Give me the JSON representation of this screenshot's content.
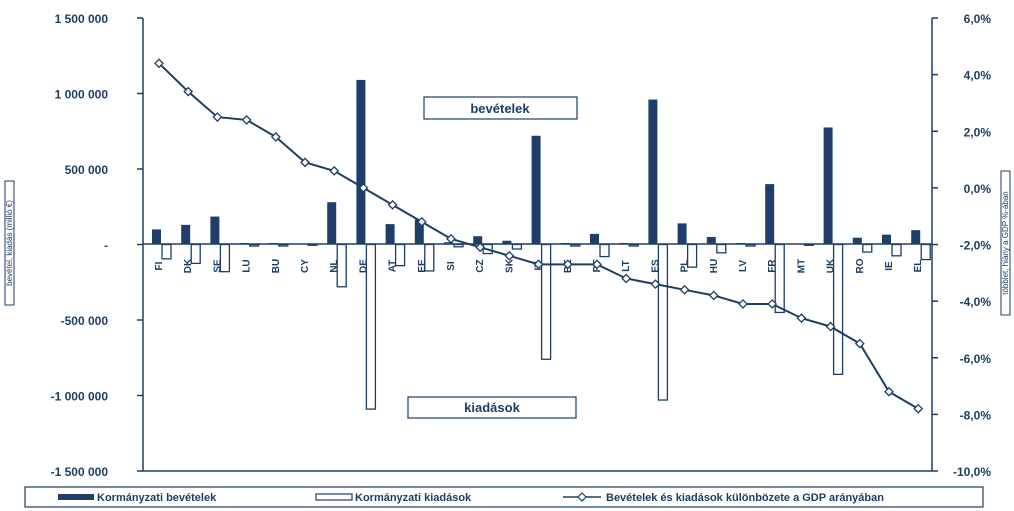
{
  "chart_data": {
    "type": "bar",
    "categories": [
      "FI",
      "DK",
      "SE",
      "LU",
      "BU",
      "CY",
      "NL",
      "DE",
      "AT",
      "EE",
      "SI",
      "CZ",
      "SK",
      "IT",
      "BE",
      "PT",
      "LT",
      "ES",
      "PL",
      "HU",
      "LV",
      "FR",
      "MT",
      "UK",
      "RO",
      "IE",
      "EL"
    ],
    "series": [
      {
        "name": "Kormányzati bevételek",
        "axis": "left",
        "kind": "bar",
        "values": [
          100000,
          130000,
          185000,
          10000,
          10000,
          5000,
          280000,
          1090000,
          135000,
          165000,
          15000,
          55000,
          25000,
          720000,
          10000,
          70000,
          10000,
          960000,
          140000,
          50000,
          10000,
          400000,
          5000,
          775000,
          45000,
          65000,
          95000
        ]
      },
      {
        "name": "Kormányzati kiadások",
        "axis": "left",
        "kind": "bar",
        "values": [
          -95000,
          -125000,
          -180000,
          -10000,
          -10000,
          -5000,
          -280000,
          -1090000,
          -140000,
          -175000,
          -15000,
          -60000,
          -30000,
          -760000,
          -10000,
          -80000,
          -10000,
          -1030000,
          -150000,
          -55000,
          -10000,
          -450000,
          -5000,
          -860000,
          -50000,
          -75000,
          -100000
        ]
      },
      {
        "name": "Bevételek és kiadások különbözete a GDP arányában",
        "axis": "right",
        "kind": "line",
        "values": [
          4.4,
          3.4,
          2.5,
          2.4,
          1.8,
          0.9,
          0.6,
          0.0,
          -0.6,
          -1.2,
          -1.8,
          -2.1,
          -2.4,
          -2.7,
          -2.7,
          -2.7,
          -3.2,
          -3.4,
          -3.6,
          -3.8,
          -4.1,
          -4.1,
          -4.6,
          -4.9,
          -5.5,
          -7.2,
          -7.8
        ]
      }
    ],
    "left_axis": {
      "label": "bevétel, kiadás (millió €)",
      "ylim": [
        -1500000,
        1500000
      ],
      "ticks": [
        "1 500 000",
        "1 000 000",
        "500 000",
        "-",
        "-500 000",
        "-1 000 000",
        "-1 500 000"
      ]
    },
    "right_axis": {
      "label": "többlet, hiány a GDP %-ában",
      "ylim": [
        -10,
        6
      ],
      "ticks": [
        "6,0%",
        "4,0%",
        "2,0%",
        "0,0%",
        "-2,0%",
        "-4,0%",
        "-6,0%",
        "-8,0%",
        "-10,0%"
      ]
    },
    "annotations": {
      "top": "bevételek",
      "bottom": "kiadások"
    },
    "legend": [
      "Kormányzati bevételek",
      "Kormányzati kiadások",
      "Bevételek és kiadások különbözete a GDP arányában"
    ],
    "legend_position": "bottom",
    "colors": {
      "primary": "#1d3e63",
      "bar_fill": "#1f3f6a",
      "background": "#ffffff"
    }
  }
}
